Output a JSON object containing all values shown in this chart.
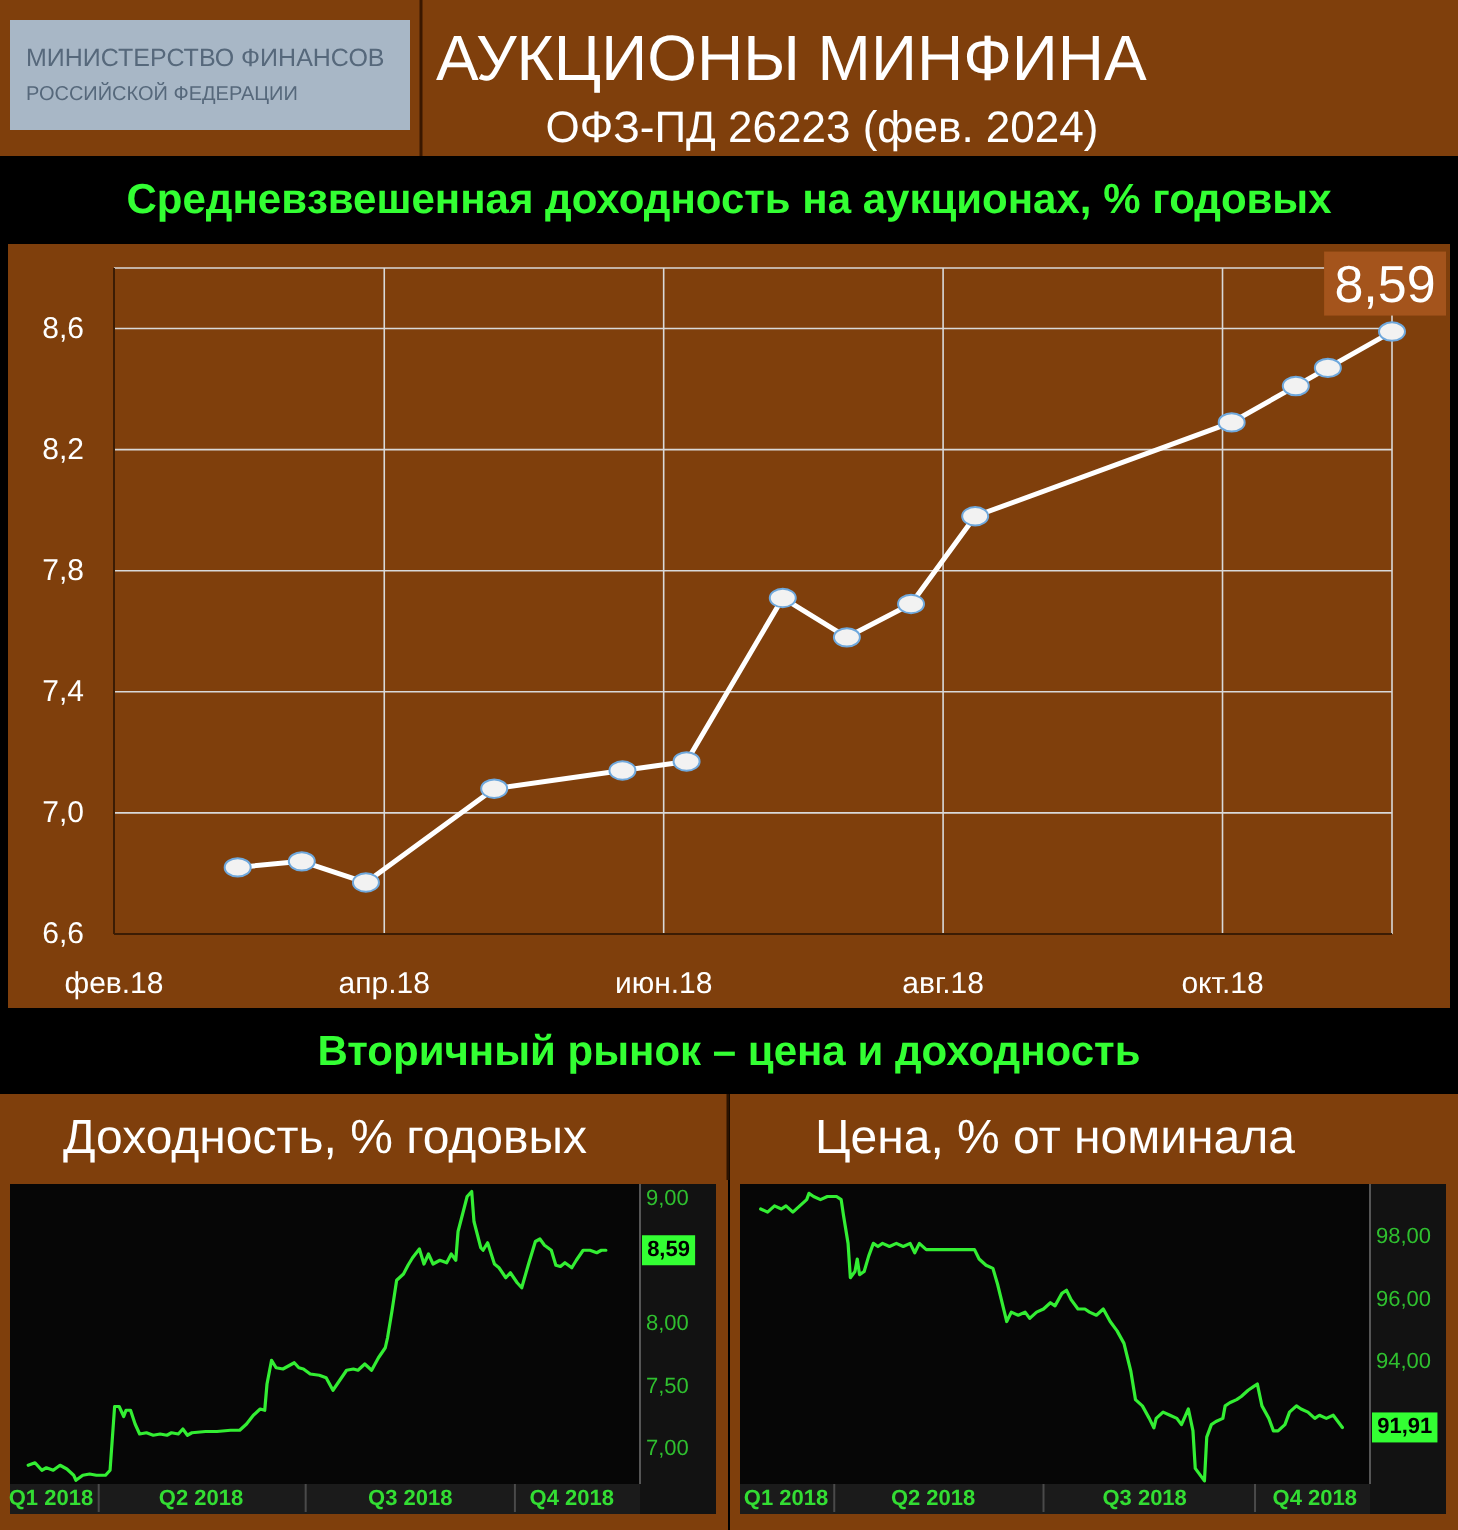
{
  "chart_data": [
    {
      "type": "other",
      "title": "АУКЦИОНЫ МИНФИНА",
      "subtitle": "ОФЗ-ПД 26223 (фев. 2024)",
      "annotations": [
        "МИНИСТЕРСТВО ФИНАНСОВ",
        "РОССИЙСКОЙ ФЕДЕРАЦИИ"
      ]
    },
    {
      "type": "line",
      "title": "Средневзвешенная доходность на аукционах, % годовых",
      "x": [
        "2018-02-28",
        "2018-03-14",
        "2018-03-28",
        "2018-04-25",
        "2018-05-23",
        "2018-06-06",
        "2018-06-27",
        "2018-07-11",
        "2018-07-25",
        "2018-08-08",
        "2018-10-03",
        "2018-10-17",
        "2018-10-24",
        "2018-11-07"
      ],
      "values": [
        6.82,
        6.84,
        6.77,
        7.08,
        7.14,
        7.17,
        7.71,
        7.58,
        7.69,
        7.98,
        8.29,
        8.41,
        8.47,
        8.59
      ],
      "color": "#ffffff",
      "marker": "circle",
      "value_labels": [
        null,
        null,
        null,
        null,
        null,
        null,
        null,
        null,
        null,
        null,
        null,
        null,
        null,
        "8,59"
      ],
      "xlim": [
        "2018-02-01",
        "2018-11-07"
      ],
      "xticks": [
        {
          "value": "2018-02-01",
          "label": "фев.18"
        },
        {
          "value": "2018-04-01",
          "label": "апр.18"
        },
        {
          "value": "2018-06-01",
          "label": "июн.18"
        },
        {
          "value": "2018-08-01",
          "label": "авг.18"
        },
        {
          "value": "2018-10-01",
          "label": "окт.18"
        }
      ],
      "ylim": [
        6.6,
        8.8
      ],
      "yticks": [
        {
          "value": 6.6,
          "label": "6,6"
        },
        {
          "value": 7.0,
          "label": "7,0"
        },
        {
          "value": 7.4,
          "label": "7,4"
        },
        {
          "value": 7.8,
          "label": "7,8"
        },
        {
          "value": 8.2,
          "label": "8,2"
        },
        {
          "value": 8.6,
          "label": "8,6"
        }
      ],
      "grid": true
    },
    {
      "type": "other",
      "title": "Вторичный рынок – цена и доходность"
    },
    {
      "type": "line",
      "title": "Доходность, % годовых",
      "x": [
        "2018-03-01",
        "2018-03-04",
        "2018-03-07",
        "2018-03-09",
        "2018-03-12",
        "2018-03-15",
        "2018-03-18",
        "2018-03-21",
        "2018-03-22",
        "2018-03-25",
        "2018-03-28",
        "2018-03-31",
        "2018-04-04",
        "2018-04-06",
        "2018-04-08",
        "2018-04-10",
        "2018-04-12",
        "2018-04-13",
        "2018-04-15",
        "2018-04-17",
        "2018-04-19",
        "2018-04-22",
        "2018-04-25",
        "2018-04-28",
        "2018-05-01",
        "2018-05-03",
        "2018-05-06",
        "2018-05-08",
        "2018-05-10",
        "2018-05-12",
        "2018-05-18",
        "2018-05-23",
        "2018-05-29",
        "2018-06-02",
        "2018-06-05",
        "2018-06-08",
        "2018-06-11",
        "2018-06-13",
        "2018-06-14",
        "2018-06-16",
        "2018-06-18",
        "2018-06-21",
        "2018-06-23",
        "2018-06-26",
        "2018-06-28",
        "2018-06-30",
        "2018-07-03",
        "2018-07-07",
        "2018-07-10",
        "2018-07-13",
        "2018-07-16",
        "2018-07-19",
        "2018-07-22",
        "2018-07-24",
        "2018-07-27",
        "2018-07-30",
        "2018-08-02",
        "2018-08-05",
        "2018-08-06",
        "2018-08-08",
        "2018-08-10",
        "2018-08-13",
        "2018-08-15",
        "2018-08-17",
        "2018-08-20",
        "2018-08-22",
        "2018-08-24",
        "2018-08-26",
        "2018-08-29",
        "2018-09-01",
        "2018-09-03",
        "2018-09-05",
        "2018-09-06",
        "2018-09-08",
        "2018-09-10",
        "2018-09-12",
        "2018-09-13",
        "2018-09-16",
        "2018-09-17",
        "2018-09-19",
        "2018-09-22",
        "2018-09-24",
        "2018-09-27",
        "2018-09-29",
        "2018-10-02",
        "2018-10-04",
        "2018-10-07",
        "2018-10-10",
        "2018-10-12",
        "2018-10-14",
        "2018-10-17",
        "2018-10-19",
        "2018-10-21",
        "2018-10-23",
        "2018-10-26",
        "2018-10-28",
        "2018-10-31",
        "2018-11-03",
        "2018-11-06",
        "2018-11-08",
        "2018-11-10"
      ],
      "values": [
        6.87,
        6.89,
        6.83,
        6.85,
        6.83,
        6.87,
        6.84,
        6.79,
        6.75,
        6.79,
        6.8,
        6.79,
        6.79,
        6.83,
        7.34,
        7.34,
        7.26,
        7.31,
        7.31,
        7.2,
        7.12,
        7.13,
        7.11,
        7.12,
        7.11,
        7.13,
        7.12,
        7.16,
        7.11,
        7.13,
        7.14,
        7.14,
        7.15,
        7.15,
        7.2,
        7.27,
        7.32,
        7.31,
        7.52,
        7.71,
        7.65,
        7.64,
        7.66,
        7.69,
        7.65,
        7.64,
        7.6,
        7.59,
        7.57,
        7.47,
        7.55,
        7.63,
        7.64,
        7.63,
        7.68,
        7.63,
        7.73,
        7.81,
        7.89,
        8.11,
        8.35,
        8.4,
        8.47,
        8.53,
        8.6,
        8.48,
        8.56,
        8.48,
        8.51,
        8.49,
        8.56,
        8.51,
        8.74,
        8.88,
        9.02,
        9.06,
        8.82,
        8.61,
        8.59,
        8.65,
        8.48,
        8.45,
        8.37,
        8.41,
        8.33,
        8.29,
        8.48,
        8.66,
        8.68,
        8.63,
        8.59,
        8.47,
        8.46,
        8.49,
        8.45,
        8.51,
        8.59,
        8.59,
        8.57,
        8.59,
        8.59
      ],
      "color": "#33ee33",
      "value_labels": [
        null,
        null,
        null,
        null,
        null,
        null,
        null,
        null,
        null,
        null,
        null,
        null,
        null,
        null,
        null,
        null,
        null,
        null,
        null,
        null,
        null,
        null,
        null,
        null,
        null,
        null,
        null,
        null,
        null,
        null,
        null,
        null,
        null,
        null,
        null,
        null,
        null,
        null,
        null,
        null,
        null,
        null,
        null,
        null,
        null,
        null,
        null,
        null,
        null,
        null,
        null,
        null,
        null,
        null,
        null,
        null,
        null,
        null,
        null,
        null,
        null,
        null,
        null,
        null,
        null,
        null,
        null,
        null,
        null,
        null,
        null,
        null,
        null,
        null,
        null,
        null,
        null,
        null,
        null,
        null,
        null,
        null,
        null,
        null,
        null,
        null,
        null,
        null,
        null,
        null,
        null,
        null,
        null,
        null,
        null,
        null,
        null,
        null,
        null,
        null,
        "8,59"
      ],
      "xlim": [
        "2018-02-21",
        "2018-11-25"
      ],
      "xticks": [
        {
          "value": "2018-03-11",
          "label": "Q1 2018"
        },
        {
          "value": "2018-04-01",
          "label": null
        },
        {
          "value": "2018-05-16",
          "label": "Q2 2018"
        },
        {
          "value": "2018-07-01",
          "label": null
        },
        {
          "value": "2018-08-16",
          "label": "Q3 2018"
        },
        {
          "value": "2018-10-01",
          "label": null
        },
        {
          "value": "2018-10-26",
          "label": "Q4 2018"
        }
      ],
      "ylim": [
        6.72,
        9.12
      ],
      "yticks": [
        {
          "value": 7.0,
          "label": "7,00"
        },
        {
          "value": 7.5,
          "label": "7,50"
        },
        {
          "value": 8.0,
          "label": "8,00"
        },
        {
          "value": 9.0,
          "label": "9,00"
        }
      ]
    },
    {
      "type": "line",
      "title": "Цена, % от номинала",
      "x": [
        "2018-02-28",
        "2018-03-03",
        "2018-03-06",
        "2018-03-09",
        "2018-03-11",
        "2018-03-14",
        "2018-03-17",
        "2018-03-20",
        "2018-03-21",
        "2018-03-23",
        "2018-03-26",
        "2018-03-29",
        "2018-04-02",
        "2018-04-04",
        "2018-04-05",
        "2018-04-07",
        "2018-04-08",
        "2018-04-10",
        "2018-04-11",
        "2018-04-12",
        "2018-04-14",
        "2018-04-16",
        "2018-04-18",
        "2018-04-20",
        "2018-04-22",
        "2018-04-25",
        "2018-04-28",
        "2018-05-01",
        "2018-05-04",
        "2018-05-06",
        "2018-05-08",
        "2018-05-11",
        "2018-05-17",
        "2018-05-22",
        "2018-05-28",
        "2018-06-01",
        "2018-06-03",
        "2018-06-06",
        "2018-06-09",
        "2018-06-11",
        "2018-06-14",
        "2018-06-15",
        "2018-06-17",
        "2018-06-20",
        "2018-06-23",
        "2018-06-25",
        "2018-06-28",
        "2018-07-01",
        "2018-07-04",
        "2018-07-06",
        "2018-07-09",
        "2018-07-11",
        "2018-07-13",
        "2018-07-16",
        "2018-07-19",
        "2018-07-21",
        "2018-07-24",
        "2018-07-27",
        "2018-07-30",
        "2018-08-02",
        "2018-08-05",
        "2018-08-08",
        "2018-08-10",
        "2018-08-13",
        "2018-08-16",
        "2018-08-18",
        "2018-08-19",
        "2018-08-22",
        "2018-08-25",
        "2018-08-28",
        "2018-08-30",
        "2018-09-02",
        "2018-09-04",
        "2018-09-05",
        "2018-09-07",
        "2018-09-09",
        "2018-09-10",
        "2018-09-12",
        "2018-09-14",
        "2018-09-17",
        "2018-09-18",
        "2018-09-20",
        "2018-09-23",
        "2018-09-25",
        "2018-09-28",
        "2018-09-30",
        "2018-10-02",
        "2018-10-04",
        "2018-10-07",
        "2018-10-09",
        "2018-10-11",
        "2018-10-14",
        "2018-10-16",
        "2018-10-19",
        "2018-10-21",
        "2018-10-24",
        "2018-10-27",
        "2018-10-29",
        "2018-11-01",
        "2018-11-04",
        "2018-11-08"
      ],
      "values": [
        98.9,
        98.8,
        99.0,
        98.9,
        99.0,
        98.8,
        99.0,
        99.2,
        99.4,
        99.3,
        99.2,
        99.3,
        99.3,
        99.2,
        98.7,
        97.8,
        96.7,
        96.9,
        97.3,
        96.8,
        96.9,
        97.4,
        97.8,
        97.7,
        97.8,
        97.7,
        97.8,
        97.7,
        97.8,
        97.5,
        97.8,
        97.6,
        97.6,
        97.6,
        97.6,
        97.6,
        97.3,
        97.1,
        97.0,
        96.5,
        95.6,
        95.3,
        95.6,
        95.5,
        95.6,
        95.4,
        95.6,
        95.7,
        95.9,
        95.8,
        96.2,
        96.3,
        96.0,
        95.7,
        95.7,
        95.6,
        95.5,
        95.7,
        95.3,
        95.0,
        94.6,
        93.7,
        92.8,
        92.6,
        92.2,
        91.9,
        92.2,
        92.4,
        92.3,
        92.2,
        92.0,
        92.5,
        91.8,
        90.6,
        90.4,
        90.2,
        91.6,
        92.0,
        92.1,
        92.2,
        92.6,
        92.7,
        92.8,
        92.9,
        93.1,
        93.2,
        93.3,
        92.6,
        92.2,
        91.8,
        91.8,
        92.0,
        92.4,
        92.6,
        92.5,
        92.4,
        92.2,
        92.3,
        92.2,
        92.3,
        91.91
      ],
      "color": "#33ee33",
      "value_labels": [
        null,
        null,
        null,
        null,
        null,
        null,
        null,
        null,
        null,
        null,
        null,
        null,
        null,
        null,
        null,
        null,
        null,
        null,
        null,
        null,
        null,
        null,
        null,
        null,
        null,
        null,
        null,
        null,
        null,
        null,
        null,
        null,
        null,
        null,
        null,
        null,
        null,
        null,
        null,
        null,
        null,
        null,
        null,
        null,
        null,
        null,
        null,
        null,
        null,
        null,
        null,
        null,
        null,
        null,
        null,
        null,
        null,
        null,
        null,
        null,
        null,
        null,
        null,
        null,
        null,
        null,
        null,
        null,
        null,
        null,
        null,
        null,
        null,
        null,
        null,
        null,
        null,
        null,
        null,
        null,
        null,
        null,
        null,
        null,
        null,
        null,
        null,
        null,
        null,
        null,
        null,
        null,
        null,
        null,
        null,
        null,
        null,
        null,
        null,
        null,
        "91,91"
      ],
      "xlim": [
        "2018-02-19",
        "2018-11-20"
      ],
      "xticks": [
        {
          "value": "2018-03-11",
          "label": "Q1 2018"
        },
        {
          "value": "2018-04-01",
          "label": null
        },
        {
          "value": "2018-05-14",
          "label": "Q2 2018"
        },
        {
          "value": "2018-07-01",
          "label": null
        },
        {
          "value": "2018-08-14",
          "label": "Q3 2018"
        },
        {
          "value": "2018-10-01",
          "label": null
        },
        {
          "value": "2018-10-27",
          "label": "Q4 2018"
        }
      ],
      "ylim": [
        90.1,
        99.7
      ],
      "yticks": [
        {
          "value": 94,
          "label": "94,00"
        },
        {
          "value": 96,
          "label": "96,00"
        },
        {
          "value": 98,
          "label": "98,00"
        }
      ]
    }
  ]
}
